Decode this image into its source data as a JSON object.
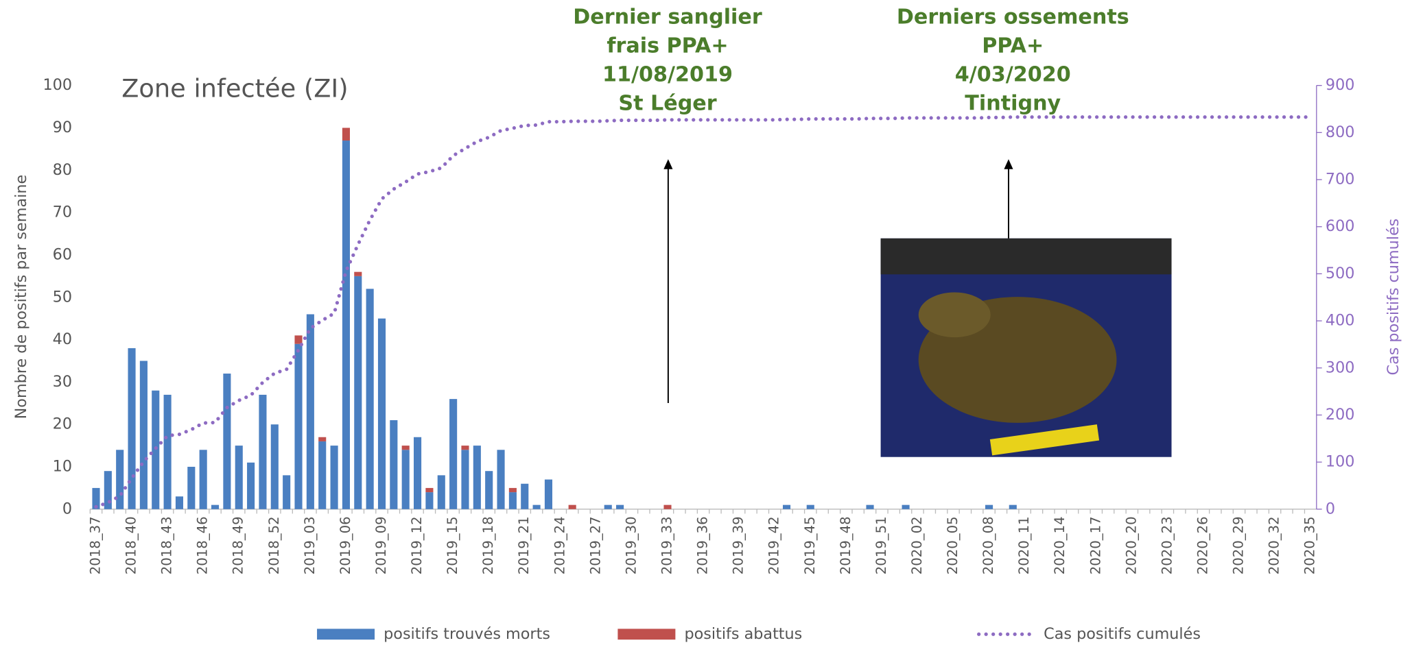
{
  "chart_data": {
    "type": "bar",
    "stacked": true,
    "title": "Zone infectée (ZI)",
    "ylabel": "Nombre de positifs par semaine",
    "y2label": "Cas positifs cumulés",
    "ylim": [
      0,
      100
    ],
    "yticks": [
      0,
      10,
      20,
      30,
      40,
      50,
      60,
      70,
      80,
      90,
      100
    ],
    "y2lim": [
      0,
      900
    ],
    "y2ticks": [
      0,
      100,
      200,
      300,
      400,
      500,
      600,
      700,
      800,
      900
    ],
    "grid": false,
    "legend": "bottom",
    "annotations": [
      {
        "lines": [
          "Dernier sanglier",
          "frais PPA+",
          "11/08/2019",
          "St Léger"
        ],
        "category": 48
      },
      {
        "lines": [
          "Derniers ossements",
          "PPA+",
          "4/03/2020",
          "Tintigny"
        ],
        "category": 77
      }
    ],
    "categories": [
      "2018_37",
      null,
      null,
      "2018_40",
      null,
      null,
      "2018_43",
      null,
      null,
      "2018_46",
      null,
      null,
      "2018_49",
      null,
      null,
      "2018_52",
      null,
      null,
      "2019_03",
      null,
      null,
      "2019_06",
      null,
      null,
      "2019_09",
      null,
      null,
      "2019_12",
      null,
      null,
      "2019_15",
      null,
      null,
      "2019_18",
      null,
      null,
      "2019_21",
      null,
      null,
      "2019_24",
      null,
      null,
      "2019_27",
      null,
      null,
      "2019_30",
      null,
      null,
      "2019_33",
      null,
      null,
      "2019_36",
      null,
      null,
      "2019_39",
      null,
      null,
      "2019_42",
      null,
      null,
      "2019_45",
      null,
      null,
      "2019_48",
      null,
      null,
      "2019_51",
      null,
      null,
      "2020_02",
      null,
      null,
      "2020_05",
      null,
      null,
      "2020_08",
      null,
      null,
      "2020_11",
      null,
      null,
      "2020_14",
      null,
      null,
      "2020_17",
      null,
      null,
      "2020_20",
      null,
      null,
      "2020_23",
      null,
      null,
      "2020_26",
      null,
      null,
      "2020_29",
      null,
      null,
      "2020_32",
      null,
      null,
      "2020_35"
    ],
    "series": [
      {
        "name": "positifs trouvés morts",
        "color": "#4a7fc1",
        "values": [
          5,
          9,
          14,
          38,
          35,
          28,
          27,
          3,
          10,
          14,
          1,
          32,
          15,
          11,
          27,
          20,
          8,
          39,
          46,
          16,
          15,
          87,
          55,
          52,
          45,
          21,
          14,
          17,
          4,
          8,
          26,
          14,
          15,
          9,
          14,
          4,
          6,
          1,
          7,
          0,
          0,
          0,
          0,
          1,
          1,
          0,
          0,
          0,
          0,
          0,
          0,
          0,
          0,
          0,
          0,
          0,
          0,
          0,
          1,
          0,
          1,
          0,
          0,
          0,
          0,
          1,
          0,
          0,
          1,
          0,
          0,
          0,
          0,
          0,
          0,
          1,
          0,
          1,
          0,
          0,
          0,
          0,
          0,
          0,
          0,
          0,
          0,
          0,
          0,
          0,
          0,
          0,
          0,
          0,
          0,
          0,
          0,
          0,
          0,
          0,
          0,
          0,
          0
        ]
      },
      {
        "name": "positifs abattus",
        "color": "#c0504d",
        "values": [
          0,
          0,
          0,
          0,
          0,
          0,
          0,
          0,
          0,
          0,
          0,
          0,
          0,
          0,
          0,
          0,
          0,
          2,
          0,
          1,
          0,
          3,
          1,
          0,
          0,
          0,
          1,
          0,
          1,
          0,
          0,
          1,
          0,
          0,
          0,
          1,
          0,
          0,
          0,
          0,
          1,
          0,
          0,
          0,
          0,
          0,
          0,
          0,
          1,
          0,
          0,
          0,
          0,
          0,
          0,
          0,
          0,
          0,
          0,
          0,
          0,
          0,
          0,
          0,
          0,
          0,
          0,
          0,
          0,
          0,
          0,
          0,
          0,
          0,
          0,
          0,
          0,
          0,
          0,
          0,
          0,
          0,
          0,
          0,
          0,
          0,
          0,
          0,
          0,
          0,
          0,
          0,
          0,
          0,
          0,
          0,
          0,
          0,
          0,
          0,
          0,
          0,
          0
        ]
      },
      {
        "name": "Cas positifs cumulés",
        "color": "#8d6bc2",
        "type": "line",
        "axis": "y2",
        "values": [
          5,
          14,
          28,
          66,
          101,
          129,
          156,
          159,
          169,
          183,
          184,
          216,
          231,
          242,
          269,
          289,
          297,
          338,
          384,
          401,
          416,
          506,
          562,
          614,
          659,
          680,
          695,
          712,
          717,
          725,
          751,
          766,
          781,
          790,
          804,
          809,
          815,
          816,
          823,
          823,
          824,
          824,
          824,
          825,
          826,
          826,
          826,
          826,
          827,
          827,
          827,
          827,
          827,
          827,
          827,
          827,
          827,
          827,
          828,
          828,
          829,
          829,
          829,
          829,
          829,
          830,
          830,
          830,
          831,
          831,
          831,
          831,
          831,
          831,
          831,
          832,
          832,
          833,
          833,
          833,
          833,
          833,
          833,
          833,
          833,
          833,
          833,
          833,
          833,
          833,
          833,
          833,
          833,
          833,
          833,
          833,
          833,
          833,
          833,
          833,
          833,
          833,
          833
        ]
      }
    ]
  }
}
